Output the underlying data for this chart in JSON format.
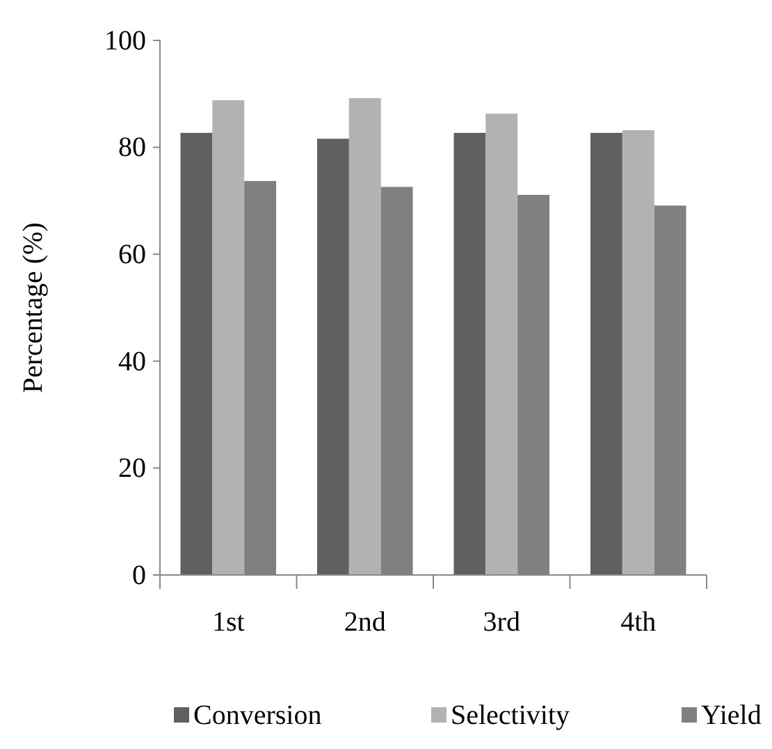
{
  "chart_data": {
    "type": "bar",
    "ylabel": "Percentage (%)",
    "categories": [
      "1st",
      "2nd",
      "3rd",
      "4th"
    ],
    "series": [
      {
        "name": "Conversion",
        "color": "#606060",
        "values": [
          82.7,
          81.6,
          82.7,
          82.7
        ]
      },
      {
        "name": "Selectivity",
        "color": "#b2b2b2",
        "values": [
          88.8,
          89.2,
          86.3,
          83.2
        ]
      },
      {
        "name": "Yield",
        "color": "#808080",
        "values": [
          73.7,
          72.6,
          71.1,
          69.1
        ]
      }
    ],
    "ylim": [
      0,
      100
    ],
    "yticks": [
      0,
      20,
      40,
      60,
      80,
      100
    ],
    "grid": false,
    "legend": "bottom"
  }
}
